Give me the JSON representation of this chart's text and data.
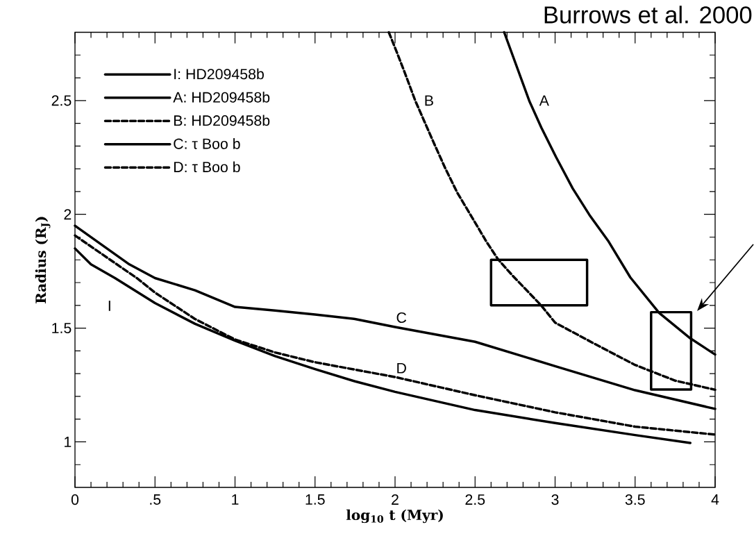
{
  "chart_data": {
    "type": "line",
    "xlabel": "log$_{10}$ t (Myr)",
    "ylabel": "Radius (R$_{J}$)",
    "xlim": [
      0,
      4
    ],
    "ylim": [
      0.8,
      2.8
    ],
    "xticks": [
      {
        "value": 0,
        "label": "0"
      },
      {
        "value": 0.1,
        "label": null
      },
      {
        "value": 0.2,
        "label": null
      },
      {
        "value": 0.3,
        "label": null
      },
      {
        "value": 0.4,
        "label": null
      },
      {
        "value": 0.5,
        "label": ".5"
      },
      {
        "value": 0.6,
        "label": null
      },
      {
        "value": 0.7,
        "label": null
      },
      {
        "value": 0.8,
        "label": null
      },
      {
        "value": 0.9,
        "label": null
      },
      {
        "value": 1,
        "label": "1"
      },
      {
        "value": 1.1,
        "label": null
      },
      {
        "value": 1.2,
        "label": null
      },
      {
        "value": 1.3,
        "label": null
      },
      {
        "value": 1.4,
        "label": null
      },
      {
        "value": 1.5,
        "label": "1.5"
      },
      {
        "value": 1.6,
        "label": null
      },
      {
        "value": 1.7,
        "label": null
      },
      {
        "value": 1.8,
        "label": null
      },
      {
        "value": 1.9,
        "label": null
      },
      {
        "value": 2,
        "label": "2"
      },
      {
        "value": 2.1,
        "label": null
      },
      {
        "value": 2.2,
        "label": null
      },
      {
        "value": 2.3,
        "label": null
      },
      {
        "value": 2.4,
        "label": null
      },
      {
        "value": 2.5,
        "label": "2.5"
      },
      {
        "value": 2.6,
        "label": null
      },
      {
        "value": 2.7,
        "label": null
      },
      {
        "value": 2.8,
        "label": null
      },
      {
        "value": 2.9,
        "label": null
      },
      {
        "value": 3,
        "label": "3"
      },
      {
        "value": 3.1,
        "label": null
      },
      {
        "value": 3.2,
        "label": null
      },
      {
        "value": 3.3,
        "label": null
      },
      {
        "value": 3.4,
        "label": null
      },
      {
        "value": 3.5,
        "label": "3.5"
      },
      {
        "value": 3.6,
        "label": null
      },
      {
        "value": 3.7,
        "label": null
      },
      {
        "value": 3.8,
        "label": null
      },
      {
        "value": 3.9,
        "label": null
      },
      {
        "value": 4,
        "label": "4"
      }
    ],
    "yticks": [
      {
        "value": 0.9,
        "label": null
      },
      1,
      {
        "value": 1.1,
        "label": null
      },
      {
        "value": 1.2,
        "label": null
      },
      {
        "value": 1.3,
        "label": null
      },
      {
        "value": 1.4,
        "label": null
      },
      1.5,
      {
        "value": 1.6,
        "label": null
      },
      {
        "value": 1.7,
        "label": null
      },
      {
        "value": 1.8,
        "label": null
      },
      {
        "value": 1.9,
        "label": null
      },
      2,
      {
        "value": 2.1,
        "label": null
      },
      {
        "value": 2.2,
        "label": null
      },
      {
        "value": 2.3,
        "label": null
      },
      {
        "value": 2.4,
        "label": null
      },
      2.5,
      {
        "value": 2.6,
        "label": null
      },
      {
        "value": 2.7,
        "label": null
      }
    ],
    "legend": "top left",
    "marker": "none",
    "series": [
      {
        "name": "I: HD209458b",
        "color": "#000000",
        "line_style": "solid",
        "x": [
          0,
          0.1,
          0.25,
          0.5,
          0.75,
          1,
          1.25,
          1.5,
          1.75,
          2,
          2.5,
          3,
          3.5,
          3.845
        ],
        "values": [
          1.85,
          1.78,
          1.72,
          1.61,
          1.519,
          1.445,
          1.377,
          1.32,
          1.266,
          1.22,
          1.14,
          1.083,
          1.03,
          0.995
        ]
      },
      {
        "name": "A: HD209458b",
        "color": "#000000",
        "line_style": "solid",
        "x": [
          2.682,
          2.839,
          2.914,
          3.005,
          3.11,
          3.215,
          3.335,
          3.47,
          3.65,
          3.845,
          4
        ],
        "values": [
          2.8,
          2.498,
          2.381,
          2.253,
          2.114,
          1.997,
          1.88,
          1.723,
          1.567,
          1.455,
          1.384
        ]
      },
      {
        "name": "B: HD209458b",
        "color": "#000000",
        "line_style": "dashed",
        "x": [
          1.961,
          2.0,
          2.059,
          2.126,
          2.179,
          2.246,
          2.314,
          2.389,
          2.479,
          2.569,
          2.644,
          2.734,
          2.914,
          3.0,
          3.252,
          3.5,
          3.751,
          4
        ],
        "values": [
          2.8,
          2.732,
          2.626,
          2.5,
          2.415,
          2.308,
          2.202,
          2.095,
          1.989,
          1.882,
          1.802,
          1.731,
          1.599,
          1.524,
          1.429,
          1.338,
          1.269,
          1.229
        ]
      },
      {
        "name": "C: τ Boo b",
        "color": "#000000",
        "line_style": "solid",
        "x": [
          0,
          0.34,
          0.5,
          0.75,
          1,
          1.25,
          1.5,
          1.75,
          2,
          2.5,
          3,
          3.5,
          4
        ],
        "values": [
          1.95,
          1.78,
          1.72,
          1.666,
          1.593,
          1.577,
          1.56,
          1.54,
          1.505,
          1.44,
          1.333,
          1.227,
          1.145
        ]
      },
      {
        "name": "D: τ Boo b",
        "color": "#000000",
        "line_style": "dashed",
        "x": [
          0,
          0.386,
          0.5,
          0.75,
          1,
          1.25,
          1.5,
          2,
          2.5,
          3,
          3.5,
          4
        ],
        "values": [
          1.907,
          1.72,
          1.656,
          1.54,
          1.45,
          1.393,
          1.35,
          1.285,
          1.205,
          1.13,
          1.067,
          1.032
        ]
      }
    ],
    "annotations": [
      "Burrows et al. 2000",
      "I",
      "A",
      "B",
      "C",
      "D"
    ]
  }
}
